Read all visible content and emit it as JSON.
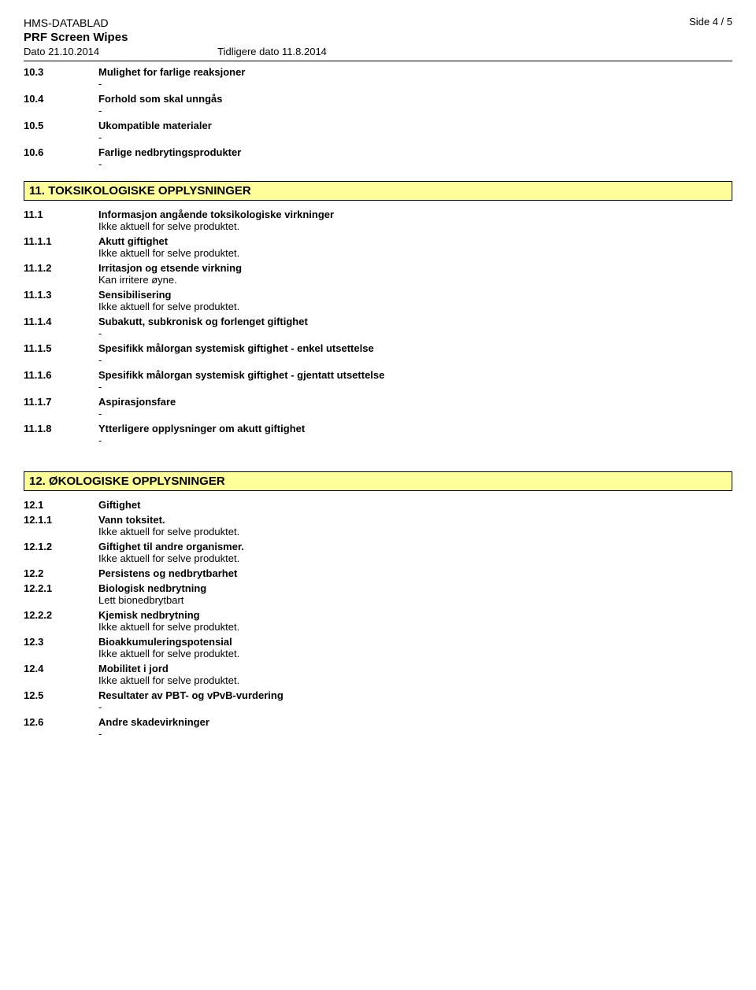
{
  "header": {
    "doc_type": "HMS-DATABLAD",
    "product": "PRF Screen Wipes",
    "date": "Dato 21.10.2014",
    "prev_date": "Tidligere dato 11.8.2014",
    "page": "Side  4 / 5"
  },
  "rows10": [
    {
      "num": "10.3",
      "head": "Mulighet for farlige reaksjoner",
      "sub": "-"
    },
    {
      "num": "10.4",
      "head": "Forhold som skal unngås",
      "sub": "-"
    },
    {
      "num": "10.5",
      "head": "Ukompatible materialer",
      "sub": "-"
    },
    {
      "num": "10.6",
      "head": "Farlige nedbrytingsprodukter",
      "sub": "-"
    }
  ],
  "section11": "11. TOKSIKOLOGISKE OPPLYSNINGER",
  "rows11": [
    {
      "num": "11.1",
      "head": "Informasjon angående toksikologiske virkninger",
      "sub": "Ikke aktuell for selve produktet."
    },
    {
      "num": "11.1.1",
      "head": "Akutt giftighet",
      "sub": "Ikke aktuell for selve produktet."
    },
    {
      "num": "11.1.2",
      "head": "Irritasjon og etsende virkning",
      "sub": "Kan irritere øyne."
    },
    {
      "num": "11.1.3",
      "head": "Sensibilisering",
      "sub": "Ikke aktuell for selve produktet."
    },
    {
      "num": "11.1.4",
      "head": "Subakutt, subkronisk og forlenget giftighet",
      "sub": "-"
    },
    {
      "num": "11.1.5",
      "head": "Spesifikk målorgan systemisk giftighet - enkel utsettelse",
      "sub": "-"
    },
    {
      "num": "11.1.6",
      "head": "Spesifikk målorgan systemisk giftighet - gjentatt utsettelse",
      "sub": "-"
    },
    {
      "num": "11.1.7",
      "head": "Aspirasjonsfare",
      "sub": "-"
    },
    {
      "num": "11.1.8",
      "head": "Ytterligere opplysninger om akutt giftighet",
      "sub": "-"
    }
  ],
  "section12": "12. ØKOLOGISKE OPPLYSNINGER",
  "rows12": [
    {
      "num": "12.1",
      "head": "Giftighet",
      "sub": ""
    },
    {
      "num": "12.1.1",
      "head": "Vann toksitet.",
      "sub": "Ikke aktuell for selve produktet."
    },
    {
      "num": "12.1.2",
      "head": "Giftighet til andre organismer.",
      "sub": "Ikke aktuell for selve produktet."
    },
    {
      "num": "12.2",
      "head": "Persistens og nedbrytbarhet",
      "sub": ""
    },
    {
      "num": "12.2.1",
      "head": "Biologisk nedbrytning",
      "sub": "Lett bionedbrytbart"
    },
    {
      "num": "12.2.2",
      "head": "Kjemisk nedbrytning",
      "sub": "Ikke aktuell for selve produktet."
    },
    {
      "num": "12.3",
      "head": "Bioakkumuleringspotensial",
      "sub": "Ikke aktuell for selve produktet."
    },
    {
      "num": "12.4",
      "head": "Mobilitet i jord",
      "sub": "Ikke aktuell for selve produktet."
    },
    {
      "num": "12.5",
      "head": "Resultater av PBT- og vPvB-vurdering",
      "sub": "-"
    },
    {
      "num": "12.6",
      "head": "Andre skadevirkninger",
      "sub": "-"
    }
  ]
}
